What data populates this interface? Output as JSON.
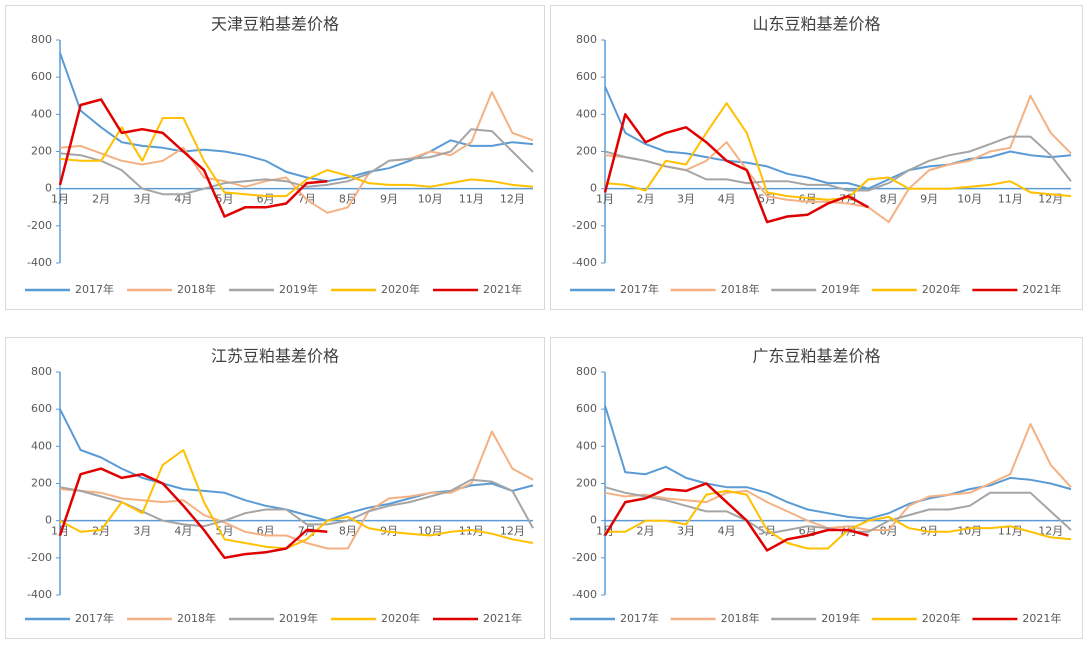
{
  "chart_data": [
    {
      "type": "line",
      "title": "天津豆粕基差价格",
      "categories": [
        "1月",
        null,
        "2月",
        null,
        "3月",
        null,
        "4月",
        null,
        "5月",
        null,
        "6月",
        null,
        "7月",
        null,
        "8月",
        null,
        "9月",
        null,
        "10月",
        null,
        "11月",
        null,
        "12月",
        null
      ],
      "ylim": [
        -400,
        800
      ],
      "yticks": [
        -400,
        -200,
        0,
        200,
        400,
        600,
        800
      ],
      "series": [
        {
          "name": "2017年",
          "color": "#5b9bd5",
          "values": [
            730,
            420,
            330,
            250,
            230,
            220,
            200,
            210,
            200,
            180,
            150,
            90,
            60,
            40,
            60,
            90,
            110,
            150,
            200,
            260,
            230,
            230,
            250,
            240
          ]
        },
        {
          "name": "2018年",
          "color": "#f4b183",
          "values": [
            220,
            230,
            190,
            150,
            130,
            150,
            220,
            60,
            40,
            10,
            40,
            60,
            -60,
            -130,
            -100,
            80,
            150,
            160,
            200,
            180,
            250,
            520,
            300,
            260
          ]
        },
        {
          "name": "2019年",
          "color": "#a5a5a5",
          "values": [
            190,
            180,
            150,
            100,
            0,
            -30,
            -30,
            0,
            30,
            40,
            50,
            40,
            10,
            20,
            40,
            80,
            150,
            160,
            170,
            200,
            320,
            310,
            200,
            90
          ]
        },
        {
          "name": "2020年",
          "color": "#ffc000",
          "values": [
            160,
            150,
            150,
            330,
            150,
            380,
            380,
            150,
            -20,
            -30,
            -40,
            -40,
            50,
            100,
            70,
            30,
            20,
            20,
            10,
            30,
            50,
            40,
            20,
            10
          ]
        },
        {
          "name": "2021年",
          "color": "#e00000",
          "values": [
            20,
            450,
            480,
            300,
            320,
            300,
            200,
            100,
            -150,
            -100,
            -100,
            -80,
            30,
            40,
            null,
            null,
            null,
            null,
            null,
            null,
            null,
            null,
            null,
            null
          ]
        }
      ]
    },
    {
      "type": "line",
      "title": "山东豆粕基差价格",
      "categories": [
        "1月",
        null,
        "2月",
        null,
        "3月",
        null,
        "4月",
        null,
        "5月",
        null,
        "6月",
        null,
        "7月",
        null,
        "8月",
        null,
        "9月",
        null,
        "10月",
        null,
        "11月",
        null,
        "12月",
        null
      ],
      "ylim": [
        -400,
        800
      ],
      "yticks": [
        -400,
        -200,
        0,
        200,
        400,
        600,
        800
      ],
      "series": [
        {
          "name": "2017年",
          "color": "#5b9bd5",
          "values": [
            550,
            300,
            240,
            200,
            190,
            170,
            150,
            140,
            120,
            80,
            60,
            30,
            30,
            0,
            50,
            100,
            120,
            130,
            160,
            170,
            200,
            180,
            170,
            180
          ]
        },
        {
          "name": "2018年",
          "color": "#f4b183",
          "values": [
            180,
            170,
            150,
            120,
            100,
            150,
            250,
            100,
            -40,
            -60,
            -70,
            -70,
            -80,
            -100,
            -180,
            0,
            100,
            130,
            150,
            200,
            220,
            500,
            300,
            190
          ]
        },
        {
          "name": "2019年",
          "color": "#a5a5a5",
          "values": [
            200,
            170,
            150,
            120,
            100,
            50,
            50,
            30,
            40,
            40,
            20,
            20,
            -10,
            -10,
            30,
            100,
            150,
            180,
            200,
            240,
            280,
            280,
            180,
            40
          ]
        },
        {
          "name": "2020年",
          "color": "#ffc000",
          "values": [
            30,
            20,
            -10,
            150,
            130,
            300,
            460,
            300,
            -20,
            -40,
            -50,
            -60,
            -50,
            50,
            60,
            0,
            0,
            0,
            10,
            20,
            40,
            -20,
            -30,
            -40
          ]
        },
        {
          "name": "2021年",
          "color": "#e00000",
          "values": [
            -20,
            400,
            250,
            300,
            330,
            250,
            150,
            100,
            -180,
            -150,
            -140,
            -80,
            -40,
            -100,
            null,
            null,
            null,
            null,
            null,
            null,
            null,
            null,
            null,
            null
          ]
        }
      ]
    },
    {
      "type": "line",
      "title": "江苏豆粕基差价格",
      "categories": [
        "1月",
        null,
        "2月",
        null,
        "3月",
        null,
        "4月",
        null,
        "5月",
        null,
        "6月",
        null,
        "7月",
        null,
        "8月",
        null,
        "9月",
        null,
        "10月",
        null,
        "11月",
        null,
        "12月",
        null
      ],
      "ylim": [
        -400,
        800
      ],
      "yticks": [
        -400,
        -200,
        0,
        200,
        400,
        600,
        800
      ],
      "series": [
        {
          "name": "2017年",
          "color": "#5b9bd5",
          "values": [
            600,
            380,
            340,
            280,
            230,
            200,
            170,
            160,
            150,
            110,
            80,
            60,
            30,
            0,
            40,
            70,
            90,
            120,
            150,
            160,
            190,
            200,
            160,
            190
          ]
        },
        {
          "name": "2018年",
          "color": "#f4b183",
          "values": [
            170,
            160,
            150,
            120,
            110,
            100,
            110,
            30,
            -10,
            -60,
            -80,
            -80,
            -120,
            -150,
            -150,
            50,
            120,
            130,
            150,
            150,
            200,
            480,
            280,
            220
          ]
        },
        {
          "name": "2019年",
          "color": "#a5a5a5",
          "values": [
            180,
            160,
            130,
            100,
            50,
            0,
            -20,
            -30,
            0,
            40,
            60,
            60,
            -20,
            -20,
            0,
            50,
            80,
            100,
            130,
            160,
            220,
            210,
            160,
            -40
          ]
        },
        {
          "name": "2020年",
          "color": "#ffc000",
          "values": [
            0,
            -60,
            -50,
            100,
            40,
            300,
            380,
            100,
            -100,
            -120,
            -140,
            -150,
            -100,
            0,
            20,
            -40,
            -60,
            -70,
            -80,
            -60,
            -50,
            -70,
            -100,
            -120
          ]
        },
        {
          "name": "2021年",
          "color": "#e00000",
          "values": [
            -80,
            250,
            280,
            230,
            250,
            200,
            80,
            -50,
            -200,
            -180,
            -170,
            -150,
            -50,
            -60,
            null,
            null,
            null,
            null,
            null,
            null,
            null,
            null,
            null,
            null
          ]
        }
      ]
    },
    {
      "type": "line",
      "title": "广东豆粕基差价格",
      "categories": [
        "1月",
        null,
        "2月",
        null,
        "3月",
        null,
        "4月",
        null,
        "5月",
        null,
        "6月",
        null,
        "7月",
        null,
        "8月",
        null,
        "9月",
        null,
        "10月",
        null,
        "11月",
        null,
        "12月",
        null
      ],
      "ylim": [
        -400,
        800
      ],
      "yticks": [
        -400,
        -200,
        0,
        200,
        400,
        600,
        800
      ],
      "series": [
        {
          "name": "2017年",
          "color": "#5b9bd5",
          "values": [
            620,
            260,
            250,
            290,
            230,
            200,
            180,
            180,
            150,
            100,
            60,
            40,
            20,
            10,
            40,
            90,
            120,
            140,
            170,
            190,
            230,
            220,
            200,
            170
          ]
        },
        {
          "name": "2018年",
          "color": "#f4b183",
          "values": [
            150,
            130,
            140,
            120,
            110,
            100,
            150,
            160,
            100,
            50,
            0,
            -40,
            -30,
            -50,
            -50,
            80,
            130,
            140,
            150,
            200,
            250,
            520,
            300,
            180
          ]
        },
        {
          "name": "2019年",
          "color": "#a5a5a5",
          "values": [
            180,
            150,
            130,
            110,
            80,
            50,
            50,
            0,
            -70,
            -50,
            -30,
            -40,
            -60,
            -60,
            0,
            30,
            60,
            60,
            80,
            150,
            150,
            150,
            50,
            -50
          ]
        },
        {
          "name": "2020年",
          "color": "#ffc000",
          "values": [
            -60,
            -60,
            0,
            0,
            -20,
            140,
            160,
            140,
            -50,
            -120,
            -150,
            -150,
            -50,
            0,
            20,
            -40,
            -60,
            -60,
            -40,
            -40,
            -30,
            -60,
            -90,
            -100
          ]
        },
        {
          "name": "2021年",
          "color": "#e00000",
          "values": [
            -80,
            100,
            120,
            170,
            160,
            200,
            100,
            0,
            -160,
            -100,
            -80,
            -50,
            -50,
            -80,
            null,
            null,
            null,
            null,
            null,
            null,
            null,
            null,
            null,
            null
          ]
        }
      ]
    }
  ]
}
